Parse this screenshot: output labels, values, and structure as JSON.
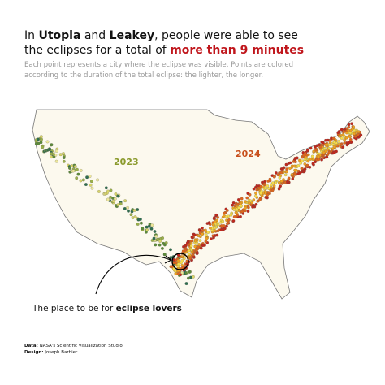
{
  "title": {
    "line1": [
      "In ",
      "Utopia",
      " and ",
      "Leakey",
      ", people were able to see"
    ],
    "line2": [
      "the eclipses for a total of ",
      "more than 9 minutes"
    ]
  },
  "subtitle": [
    "Each point represents a city where the eclipse was visible. Points are colored",
    "according to the duration of the total eclipse: the lighter, the longer."
  ],
  "map_labels": {
    "eclipse_2023": "2023",
    "eclipse_2024": "2024"
  },
  "annotation": [
    "The place to be for ",
    "eclipse lovers"
  ],
  "footer": {
    "data": [
      "Data:",
      " NASA's Scientific Visualization Studio"
    ],
    "design": [
      "Design:",
      " Joseph Barbier"
    ]
  }
}
